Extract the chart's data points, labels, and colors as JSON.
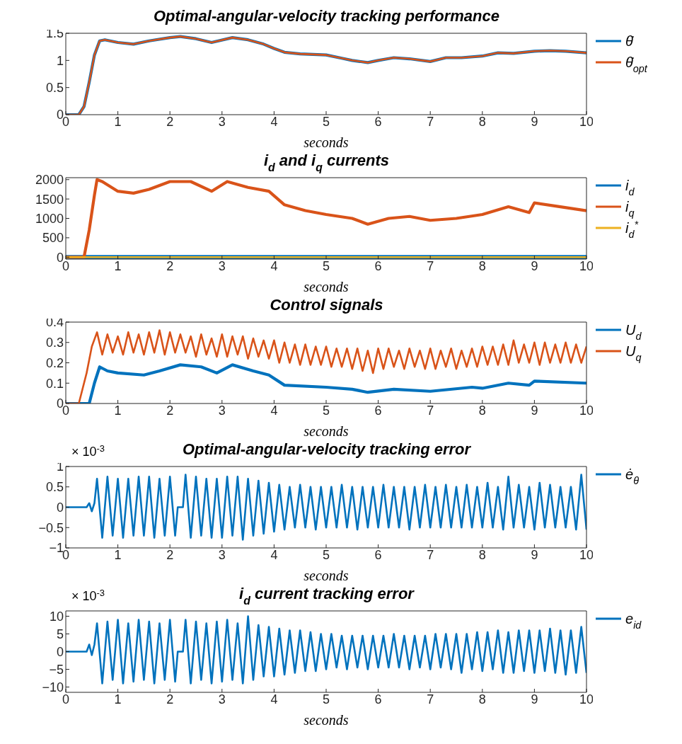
{
  "chart_data": [
    {
      "type": "line",
      "title": "Optimal-angular-velocity tracking performance",
      "xlabel": "seconds",
      "legend": "right",
      "xlim": [
        0,
        10
      ],
      "xticks": [
        0,
        1,
        2,
        3,
        4,
        5,
        6,
        7,
        8,
        9,
        10
      ],
      "ylim": [
        0,
        1.5
      ],
      "yticks": [
        0,
        0.5,
        1,
        1.5
      ],
      "marker": "none",
      "line_style": "solid",
      "x": [
        0,
        0.25,
        0.35,
        0.45,
        0.55,
        0.65,
        0.75,
        1,
        1.3,
        1.6,
        2,
        2.2,
        2.5,
        2.8,
        3.2,
        3.5,
        3.8,
        4,
        4.2,
        4.5,
        5,
        5.3,
        5.5,
        5.8,
        6,
        6.3,
        6.6,
        7,
        7.3,
        7.6,
        8,
        8.3,
        8.6,
        9,
        9.3,
        9.6,
        10
      ],
      "series": [
        {
          "name": "θ̇",
          "color": "#0072bd",
          "values": [
            0,
            0,
            0.15,
            0.6,
            1.1,
            1.36,
            1.38,
            1.33,
            1.3,
            1.36,
            1.42,
            1.44,
            1.4,
            1.33,
            1.42,
            1.38,
            1.3,
            1.22,
            1.15,
            1.12,
            1.1,
            1.04,
            1.0,
            0.96,
            1.0,
            1.05,
            1.03,
            0.98,
            1.05,
            1.05,
            1.08,
            1.14,
            1.13,
            1.17,
            1.18,
            1.17,
            1.14
          ]
        },
        {
          "name": "θ̇$_{opt}$",
          "color": "#d95319",
          "values": [
            0,
            0,
            0.15,
            0.6,
            1.1,
            1.36,
            1.38,
            1.33,
            1.3,
            1.36,
            1.42,
            1.44,
            1.4,
            1.33,
            1.42,
            1.38,
            1.3,
            1.22,
            1.15,
            1.12,
            1.1,
            1.04,
            1.0,
            0.96,
            1.0,
            1.05,
            1.03,
            0.98,
            1.05,
            1.05,
            1.08,
            1.14,
            1.13,
            1.17,
            1.18,
            1.17,
            1.14
          ]
        }
      ]
    },
    {
      "type": "line",
      "title": "i$_{d}$ and i$_{q}$ currents",
      "xlabel": "seconds",
      "legend": "right",
      "xlim": [
        0,
        10
      ],
      "xticks": [
        0,
        1,
        2,
        3,
        4,
        5,
        6,
        7,
        8,
        9,
        10
      ],
      "ylim": [
        -50,
        2050
      ],
      "yticks": [
        0,
        500,
        1000,
        1500,
        2000
      ],
      "marker": "none",
      "line_style": "solid",
      "x": [
        0,
        0.35,
        0.45,
        0.55,
        0.6,
        0.7,
        1,
        1.3,
        1.6,
        2,
        2.4,
        2.8,
        3.1,
        3.5,
        3.9,
        4.2,
        4.6,
        5,
        5.5,
        5.8,
        6.2,
        6.6,
        7,
        7.5,
        8,
        8.5,
        8.9,
        9,
        9.5,
        10
      ],
      "series": [
        {
          "name": "i$_{d}$",
          "color": "#0072bd",
          "values": [
            0,
            0,
            0,
            0,
            0,
            0,
            0,
            0,
            0,
            0,
            0,
            0,
            0,
            0,
            0,
            0,
            0,
            0,
            0,
            0,
            0,
            0,
            0,
            0,
            0,
            0,
            0,
            0,
            0,
            0
          ]
        },
        {
          "name": "i$_{q}$",
          "color": "#d95319",
          "values": [
            0,
            0,
            700,
            1600,
            2000,
            1950,
            1700,
            1650,
            1750,
            1950,
            1950,
            1700,
            1950,
            1800,
            1700,
            1350,
            1200,
            1100,
            1000,
            850,
            1000,
            1050,
            950,
            1000,
            1100,
            1300,
            1150,
            1400,
            1300,
            1200
          ]
        },
        {
          "name": "i$_{d}$$^{*}$",
          "color": "#edb120",
          "values": [
            0,
            0,
            0,
            0,
            0,
            0,
            0,
            0,
            0,
            0,
            0,
            0,
            0,
            0,
            0,
            0,
            0,
            0,
            0,
            0,
            0,
            0,
            0,
            0,
            0,
            0,
            0,
            0,
            0,
            0
          ]
        }
      ]
    },
    {
      "type": "line",
      "title": "Control signals",
      "xlabel": "seconds",
      "legend": "right",
      "xlim": [
        0,
        10
      ],
      "xticks": [
        0,
        1,
        2,
        3,
        4,
        5,
        6,
        7,
        8,
        9,
        10
      ],
      "ylim": [
        0,
        0.4
      ],
      "yticks": [
        0,
        0.1,
        0.2,
        0.3,
        0.4
      ],
      "marker": "none",
      "line_style": "solid",
      "x": [
        0,
        0.45,
        0.55,
        0.65,
        0.8,
        1,
        1.5,
        1.8,
        2.2,
        2.6,
        2.9,
        3.2,
        3.6,
        3.9,
        4.2,
        5,
        5.5,
        5.8,
        6.3,
        7,
        7.8,
        8,
        8.5,
        8.9,
        9,
        10
      ],
      "series": [
        {
          "name": "U$_{d}$",
          "color": "#0072bd",
          "values": [
            0,
            0,
            0.1,
            0.18,
            0.16,
            0.15,
            0.14,
            0.16,
            0.19,
            0.18,
            0.15,
            0.19,
            0.16,
            0.14,
            0.09,
            0.08,
            0.07,
            0.055,
            0.07,
            0.06,
            0.08,
            0.075,
            0.1,
            0.09,
            0.11,
            0.1
          ]
        },
        {
          "name": "U$_{q}$",
          "color": "#d95319",
          "x": [
            0,
            0.25,
            0.4,
            0.5,
            0.6,
            0.7,
            0.8,
            0.9,
            1.0,
            1.1,
            1.2,
            1.3,
            1.4,
            1.5,
            1.6,
            1.7,
            1.8,
            1.9,
            2.0,
            2.1,
            2.2,
            2.3,
            2.4,
            2.5,
            2.6,
            2.7,
            2.8,
            2.9,
            3.0,
            3.1,
            3.2,
            3.3,
            3.4,
            3.5,
            3.6,
            3.7,
            3.8,
            3.9,
            4.0,
            4.1,
            4.2,
            4.3,
            4.4,
            4.5,
            4.6,
            4.7,
            4.8,
            4.9,
            5.0,
            5.1,
            5.2,
            5.3,
            5.4,
            5.5,
            5.6,
            5.7,
            5.8,
            5.9,
            6.0,
            6.1,
            6.2,
            6.3,
            6.4,
            6.5,
            6.6,
            6.7,
            6.8,
            6.9,
            7.0,
            7.1,
            7.2,
            7.3,
            7.4,
            7.5,
            7.6,
            7.7,
            7.8,
            7.9,
            8.0,
            8.1,
            8.2,
            8.3,
            8.4,
            8.5,
            8.6,
            8.7,
            8.8,
            8.9,
            9.0,
            9.1,
            9.2,
            9.3,
            9.4,
            9.5,
            9.6,
            9.7,
            9.8,
            9.9,
            10.0
          ],
          "values": [
            0,
            0,
            0.15,
            0.28,
            0.35,
            0.24,
            0.34,
            0.25,
            0.33,
            0.24,
            0.35,
            0.25,
            0.34,
            0.24,
            0.35,
            0.25,
            0.36,
            0.24,
            0.35,
            0.25,
            0.34,
            0.25,
            0.33,
            0.23,
            0.34,
            0.24,
            0.32,
            0.23,
            0.34,
            0.23,
            0.33,
            0.24,
            0.33,
            0.22,
            0.32,
            0.23,
            0.31,
            0.22,
            0.31,
            0.2,
            0.3,
            0.2,
            0.29,
            0.19,
            0.29,
            0.19,
            0.28,
            0.19,
            0.28,
            0.18,
            0.27,
            0.18,
            0.27,
            0.17,
            0.27,
            0.16,
            0.26,
            0.15,
            0.27,
            0.17,
            0.27,
            0.18,
            0.26,
            0.17,
            0.27,
            0.18,
            0.26,
            0.17,
            0.27,
            0.17,
            0.26,
            0.18,
            0.27,
            0.17,
            0.26,
            0.18,
            0.27,
            0.18,
            0.28,
            0.19,
            0.28,
            0.19,
            0.29,
            0.19,
            0.31,
            0.2,
            0.29,
            0.2,
            0.3,
            0.19,
            0.3,
            0.2,
            0.29,
            0.2,
            0.3,
            0.2,
            0.29,
            0.2,
            0.28
          ]
        }
      ]
    },
    {
      "type": "line",
      "title": "Optimal-angular-velocity tracking error",
      "xlabel": "seconds",
      "legend": "right",
      "annotations": [
        "× 10$^{-3}$"
      ],
      "xlim": [
        0,
        10
      ],
      "xticks": [
        0,
        1,
        2,
        3,
        4,
        5,
        6,
        7,
        8,
        9,
        10
      ],
      "ylim": [
        -1,
        1
      ],
      "yticks": [
        {
          "value": -1,
          "label": "−1"
        },
        {
          "value": -0.5,
          "label": "−0.5"
        },
        0,
        0.5,
        1
      ],
      "marker": "none",
      "line_style": "solid",
      "x": [
        0,
        0.4,
        0.45,
        0.5,
        0.55,
        0.6,
        0.7,
        0.8,
        0.9,
        1.0,
        1.1,
        1.2,
        1.3,
        1.4,
        1.5,
        1.6,
        1.7,
        1.8,
        1.9,
        2.0,
        2.1,
        2.15,
        2.25,
        2.3,
        2.4,
        2.5,
        2.6,
        2.7,
        2.8,
        2.9,
        3.0,
        3.1,
        3.2,
        3.3,
        3.4,
        3.5,
        3.6,
        3.7,
        3.8,
        3.9,
        4.0,
        4.1,
        4.2,
        4.3,
        4.4,
        4.5,
        4.6,
        4.7,
        4.8,
        4.9,
        5.0,
        5.1,
        5.2,
        5.3,
        5.4,
        5.5,
        5.6,
        5.7,
        5.8,
        5.9,
        6.0,
        6.1,
        6.2,
        6.3,
        6.4,
        6.5,
        6.6,
        6.7,
        6.8,
        6.9,
        7.0,
        7.1,
        7.2,
        7.3,
        7.4,
        7.5,
        7.6,
        7.7,
        7.8,
        7.9,
        8.0,
        8.1,
        8.2,
        8.3,
        8.4,
        8.5,
        8.6,
        8.7,
        8.8,
        8.9,
        9.0,
        9.1,
        9.2,
        9.3,
        9.4,
        9.5,
        9.6,
        9.7,
        9.8,
        9.9,
        10.0
      ],
      "series": [
        {
          "name": "ė$_{θ}$",
          "color": "#0072bd",
          "values": [
            0,
            0,
            0.1,
            -0.1,
            0.1,
            0.7,
            -0.75,
            0.75,
            -0.7,
            0.7,
            -0.75,
            0.7,
            -0.7,
            0.75,
            -0.7,
            0.75,
            -0.75,
            0.7,
            -0.7,
            0.75,
            -0.7,
            0,
            0,
            0.8,
            -0.75,
            0.75,
            -0.7,
            0.7,
            -0.75,
            0.7,
            -0.75,
            0.75,
            -0.7,
            0.75,
            -0.8,
            0.7,
            -0.7,
            0.65,
            -0.65,
            0.6,
            -0.6,
            0.55,
            -0.55,
            0.5,
            -0.5,
            0.55,
            -0.5,
            0.5,
            -0.55,
            0.5,
            -0.5,
            0.5,
            -0.5,
            0.55,
            -0.5,
            0.5,
            -0.55,
            0.5,
            -0.5,
            0.5,
            -0.5,
            0.55,
            -0.5,
            0.5,
            -0.5,
            0.5,
            -0.55,
            0.5,
            -0.5,
            0.55,
            -0.5,
            0.5,
            -0.5,
            0.55,
            -0.5,
            0.5,
            -0.5,
            0.55,
            -0.5,
            0.5,
            -0.5,
            0.6,
            -0.5,
            0.5,
            -0.55,
            0.75,
            -0.5,
            0.55,
            -0.5,
            0.5,
            -0.55,
            0.6,
            -0.5,
            0.55,
            -0.5,
            0.5,
            -0.5,
            0.5,
            -0.55,
            0.8,
            -0.55
          ]
        }
      ]
    },
    {
      "type": "line",
      "title": "i$_{d}$ current tracking error",
      "xlabel": "seconds",
      "legend": "right",
      "annotations": [
        "× 10$^{-3}$"
      ],
      "xlim": [
        0,
        10
      ],
      "xticks": [
        0,
        1,
        2,
        3,
        4,
        5,
        6,
        7,
        8,
        9,
        10
      ],
      "ylim": [
        -11.5,
        11.5
      ],
      "yticks": [
        {
          "value": -10,
          "label": "−10"
        },
        {
          "value": -5,
          "label": "−5"
        },
        0,
        5,
        10
      ],
      "marker": "none",
      "line_style": "solid",
      "x": [
        0,
        0.4,
        0.45,
        0.5,
        0.55,
        0.6,
        0.7,
        0.8,
        0.9,
        1.0,
        1.1,
        1.2,
        1.3,
        1.4,
        1.5,
        1.6,
        1.7,
        1.8,
        1.9,
        2.0,
        2.1,
        2.15,
        2.25,
        2.3,
        2.4,
        2.5,
        2.6,
        2.7,
        2.8,
        2.9,
        3.0,
        3.1,
        3.2,
        3.3,
        3.4,
        3.5,
        3.6,
        3.7,
        3.8,
        3.9,
        4.0,
        4.1,
        4.2,
        4.3,
        4.4,
        4.5,
        4.6,
        4.7,
        4.8,
        4.9,
        5.0,
        5.1,
        5.2,
        5.3,
        5.4,
        5.5,
        5.6,
        5.7,
        5.8,
        5.9,
        6.0,
        6.1,
        6.2,
        6.3,
        6.4,
        6.5,
        6.6,
        6.7,
        6.8,
        6.9,
        7.0,
        7.1,
        7.2,
        7.3,
        7.4,
        7.5,
        7.6,
        7.7,
        7.8,
        7.9,
        8.0,
        8.1,
        8.2,
        8.3,
        8.4,
        8.5,
        8.6,
        8.7,
        8.8,
        8.9,
        9.0,
        9.1,
        9.2,
        9.3,
        9.4,
        9.5,
        9.6,
        9.7,
        9.8,
        9.9,
        10.0
      ],
      "series": [
        {
          "name": "e$_{i}$$_{d}$",
          "color": "#0072bd",
          "values": [
            0,
            0,
            2,
            -1,
            2,
            8,
            -9,
            8.5,
            -8,
            9,
            -9,
            8,
            -8.5,
            9,
            -8,
            8.5,
            -9,
            8,
            -8,
            9,
            -8.5,
            0,
            0,
            9,
            -9,
            8.5,
            -8,
            8,
            -9,
            8.5,
            -8.5,
            9,
            -8,
            8,
            -9,
            10,
            -8,
            7.5,
            -7,
            7,
            -7,
            6.5,
            -6.5,
            6,
            -6,
            6,
            -5.5,
            5.5,
            -5.5,
            5,
            -5,
            5,
            -4.5,
            4.5,
            -5,
            4.5,
            -4.5,
            4.5,
            -5,
            4.5,
            -4.5,
            4.5,
            -4.5,
            5,
            -4.5,
            4.5,
            -5,
            4.5,
            -4.5,
            4.5,
            -5,
            5,
            -4.5,
            5,
            -5,
            5,
            -6,
            5,
            -5,
            5.5,
            -5.5,
            5.5,
            -5,
            6,
            -6,
            5.5,
            -6,
            6,
            -5.5,
            6,
            -6,
            6,
            -5.5,
            6.5,
            -6,
            6,
            -6.5,
            6,
            -6,
            7,
            -6
          ]
        }
      ]
    }
  ]
}
